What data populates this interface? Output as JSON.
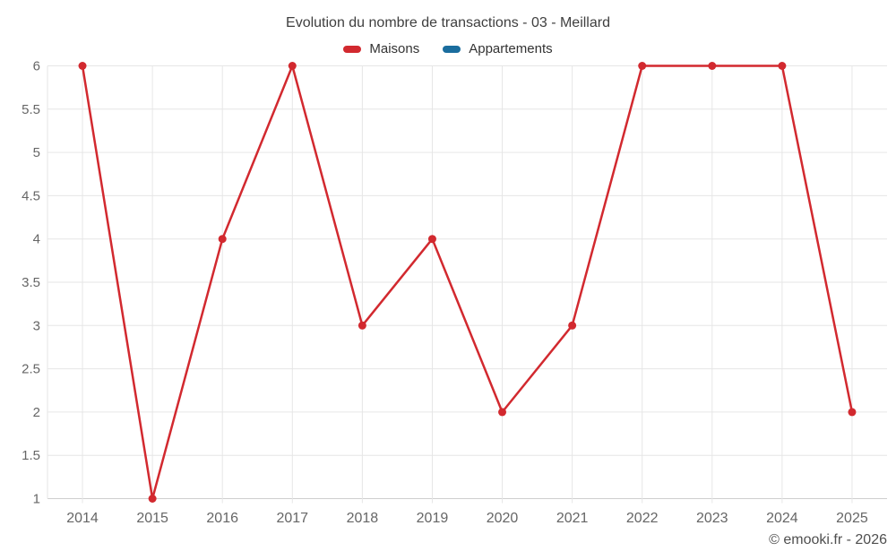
{
  "title": "Evolution du nombre de transactions - 03 - Meillard",
  "legend": {
    "items": [
      {
        "label": "Maisons",
        "color": "#d2292f"
      },
      {
        "label": "Appartements",
        "color": "#1a6d9e"
      }
    ]
  },
  "footer": {
    "copyright": "© emooki.fr - 2026"
  },
  "colors": {
    "maisons": "#d2292f",
    "appartements": "#1a6d9e",
    "grid": "#e6e6e6",
    "axis_line": "#cfcfcf",
    "axis_text": "#666666",
    "title_text": "#3f3f3f"
  },
  "chart_data": {
    "type": "line",
    "title": "Evolution du nombre de transactions - 03 - Meillard",
    "categories": [
      "2014",
      "2015",
      "2016",
      "2017",
      "2018",
      "2019",
      "2020",
      "2021",
      "2022",
      "2023",
      "2024",
      "2025"
    ],
    "series": [
      {
        "name": "Maisons",
        "color": "#d2292f",
        "values": [
          6,
          1,
          4,
          6,
          3,
          4,
          2,
          3,
          6,
          6,
          6,
          2
        ]
      },
      {
        "name": "Appartements",
        "color": "#1a6d9e",
        "values": []
      }
    ],
    "xlabel": "",
    "ylabel": "",
    "ylim": [
      1,
      6
    ],
    "ytick_step": 0.5,
    "yticks": [
      1,
      1.5,
      2,
      2.5,
      3,
      3.5,
      4,
      4.5,
      5,
      5.5,
      6
    ],
    "grid": true,
    "legend_position": "top",
    "marker": "circle",
    "annotation": "© emooki.fr - 2026"
  }
}
